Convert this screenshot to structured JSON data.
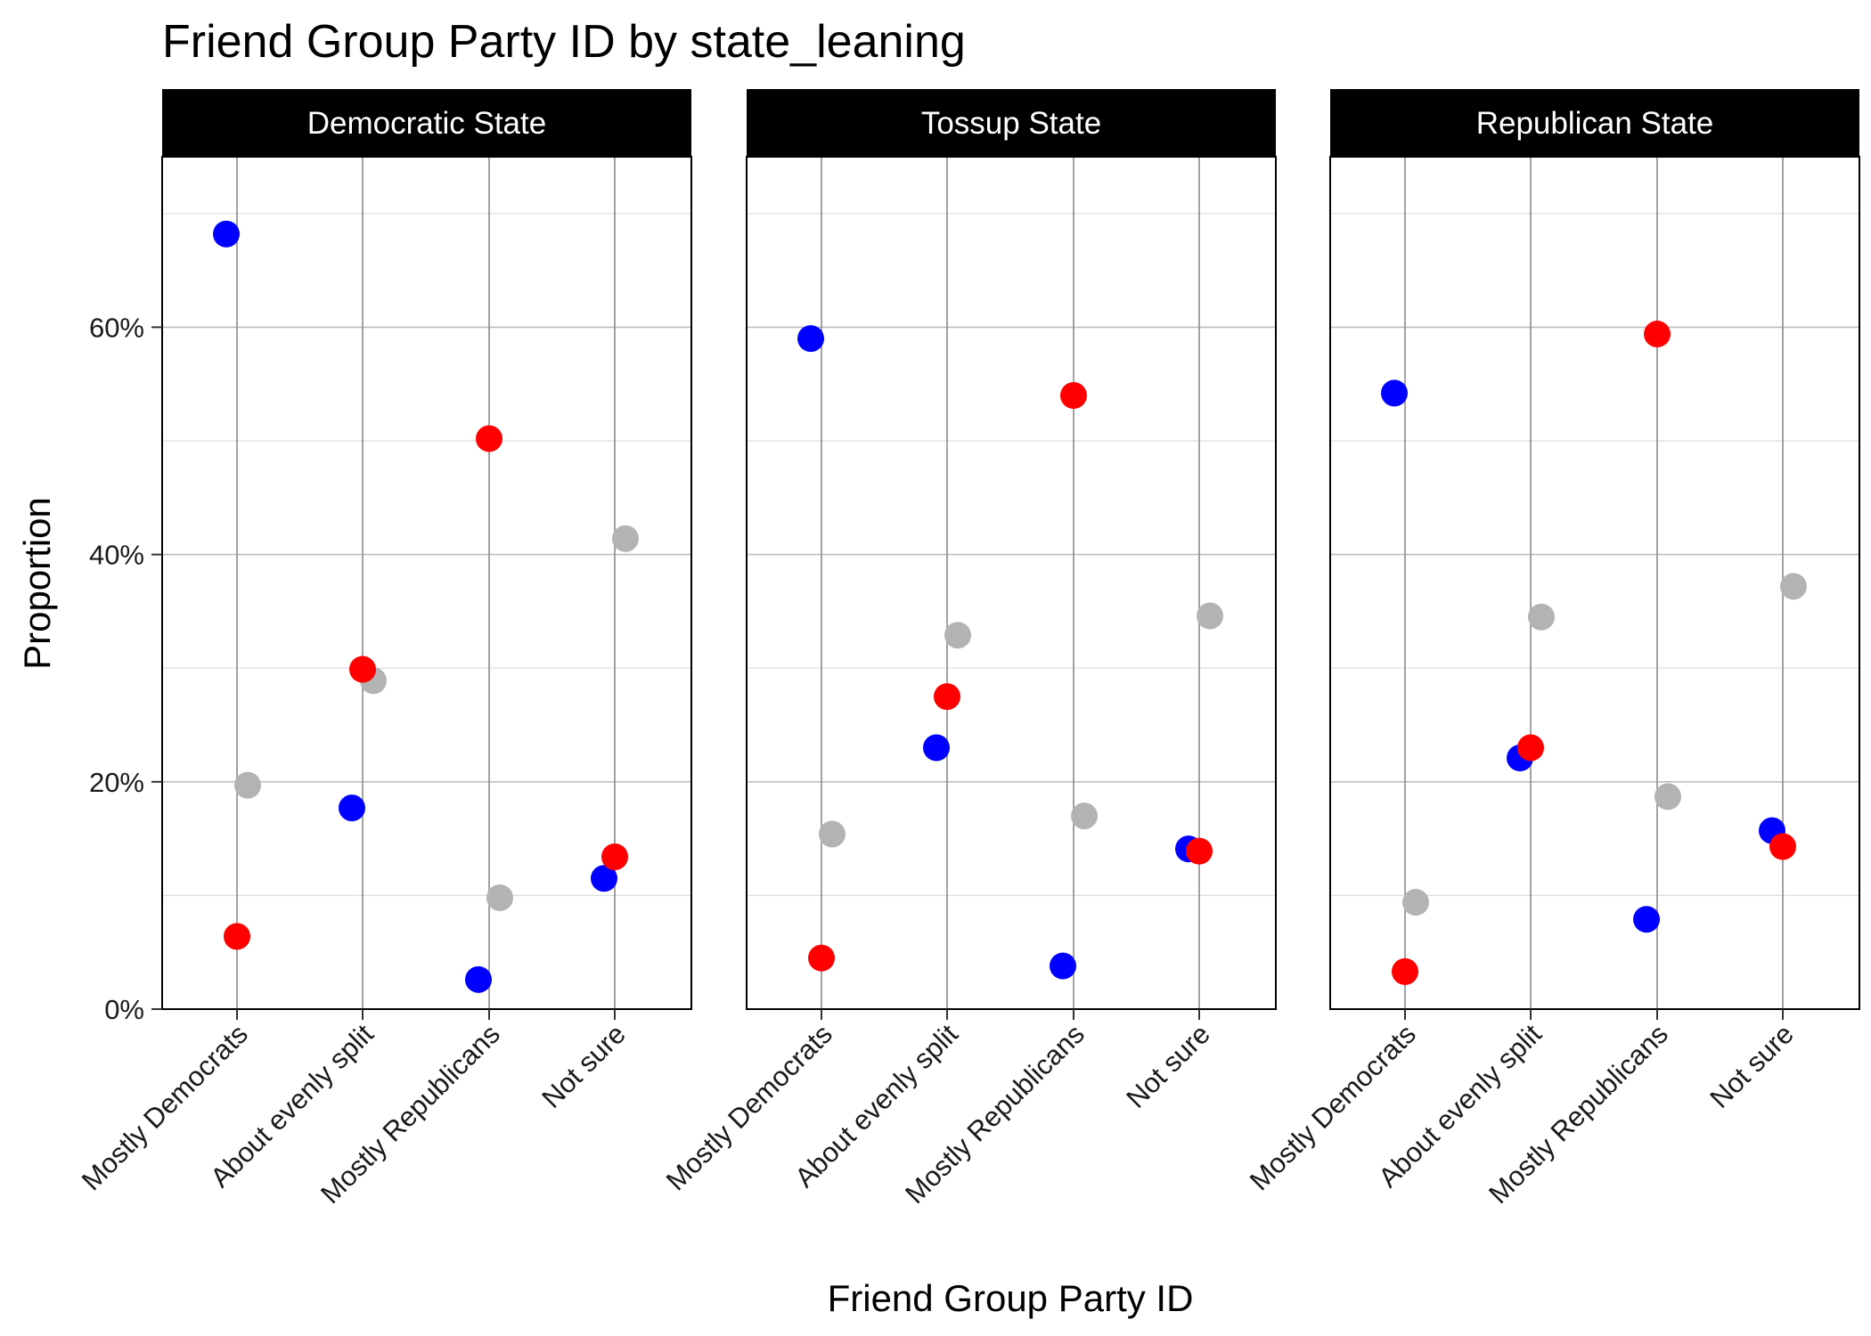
{
  "chart_data": {
    "type": "scatter",
    "title": "Friend Group Party ID by state_leaning",
    "xlabel": "Friend Group Party ID",
    "ylabel": "Proportion",
    "ylim": [
      0,
      0.75
    ],
    "y_ticks": [
      0,
      0.2,
      0.4,
      0.6
    ],
    "y_tick_labels": [
      "0%",
      "20%",
      "40%",
      "60%"
    ],
    "categories": [
      "Mostly Democrats",
      "About evenly split",
      "Mostly Republicans",
      "Not sure"
    ],
    "grid": true,
    "legend": "none",
    "point_colors": [
      "#0000ff",
      "#ff0000",
      "#b3b3b3"
    ],
    "panels": [
      {
        "name": "Democratic State",
        "points": [
          {
            "category": "Mostly Democrats",
            "color": "#0000ff",
            "y": 0.682
          },
          {
            "category": "Mostly Democrats",
            "color": "#b3b3b3",
            "y": 0.197
          },
          {
            "category": "Mostly Democrats",
            "color": "#ff0000",
            "y": 0.064
          },
          {
            "category": "About evenly split",
            "color": "#0000ff",
            "y": 0.177
          },
          {
            "category": "About evenly split",
            "color": "#b3b3b3",
            "y": 0.289
          },
          {
            "category": "About evenly split",
            "color": "#ff0000",
            "y": 0.299
          },
          {
            "category": "Mostly Republicans",
            "color": "#0000ff",
            "y": 0.026
          },
          {
            "category": "Mostly Republicans",
            "color": "#b3b3b3",
            "y": 0.098
          },
          {
            "category": "Mostly Republicans",
            "color": "#ff0000",
            "y": 0.502
          },
          {
            "category": "Not sure",
            "color": "#0000ff",
            "y": 0.115
          },
          {
            "category": "Not sure",
            "color": "#b3b3b3",
            "y": 0.414
          },
          {
            "category": "Not sure",
            "color": "#ff0000",
            "y": 0.134
          }
        ]
      },
      {
        "name": "Tossup State",
        "points": [
          {
            "category": "Mostly Democrats",
            "color": "#0000ff",
            "y": 0.59
          },
          {
            "category": "Mostly Democrats",
            "color": "#b3b3b3",
            "y": 0.154
          },
          {
            "category": "Mostly Democrats",
            "color": "#ff0000",
            "y": 0.045
          },
          {
            "category": "About evenly split",
            "color": "#0000ff",
            "y": 0.23
          },
          {
            "category": "About evenly split",
            "color": "#b3b3b3",
            "y": 0.329
          },
          {
            "category": "About evenly split",
            "color": "#ff0000",
            "y": 0.275
          },
          {
            "category": "Mostly Republicans",
            "color": "#0000ff",
            "y": 0.038
          },
          {
            "category": "Mostly Republicans",
            "color": "#b3b3b3",
            "y": 0.17
          },
          {
            "category": "Mostly Republicans",
            "color": "#ff0000",
            "y": 0.54
          },
          {
            "category": "Not sure",
            "color": "#0000ff",
            "y": 0.141
          },
          {
            "category": "Not sure",
            "color": "#b3b3b3",
            "y": 0.346
          },
          {
            "category": "Not sure",
            "color": "#ff0000",
            "y": 0.139
          }
        ]
      },
      {
        "name": "Republican State",
        "points": [
          {
            "category": "Mostly Democrats",
            "color": "#0000ff",
            "y": 0.542
          },
          {
            "category": "Mostly Democrats",
            "color": "#b3b3b3",
            "y": 0.094
          },
          {
            "category": "Mostly Democrats",
            "color": "#ff0000",
            "y": 0.033
          },
          {
            "category": "About evenly split",
            "color": "#0000ff",
            "y": 0.221
          },
          {
            "category": "About evenly split",
            "color": "#b3b3b3",
            "y": 0.345
          },
          {
            "category": "About evenly split",
            "color": "#ff0000",
            "y": 0.23
          },
          {
            "category": "Mostly Republicans",
            "color": "#0000ff",
            "y": 0.079
          },
          {
            "category": "Mostly Republicans",
            "color": "#b3b3b3",
            "y": 0.187
          },
          {
            "category": "Mostly Republicans",
            "color": "#ff0000",
            "y": 0.594
          },
          {
            "category": "Not sure",
            "color": "#0000ff",
            "y": 0.157
          },
          {
            "category": "Not sure",
            "color": "#b3b3b3",
            "y": 0.372
          },
          {
            "category": "Not sure",
            "color": "#ff0000",
            "y": 0.143
          }
        ]
      }
    ]
  }
}
